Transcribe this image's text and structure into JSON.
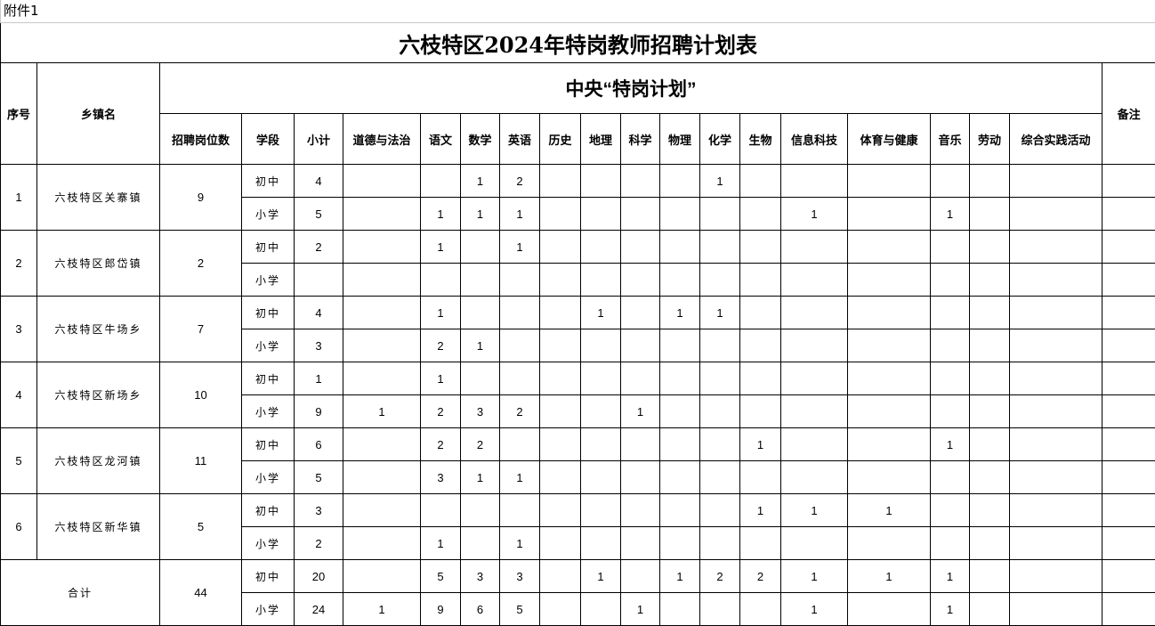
{
  "attachment_label": "附件1",
  "title": "六枝特区2024年特岗教师招聘计划表",
  "headers": {
    "index": "序号",
    "town": "乡镇名",
    "central": "中央“特岗计划”",
    "remarks": "备注",
    "positions": "招聘岗位数",
    "stage": "学段",
    "subtotal": "小计",
    "subjects": [
      "道德与法治",
      "语文",
      "数学",
      "英语",
      "历史",
      "地理",
      "科学",
      "物理",
      "化学",
      "生物",
      "信息科技",
      "体育与健康",
      "音乐",
      "劳动",
      "综合实践活动"
    ]
  },
  "rows": [
    {
      "index": "1",
      "town": "六枝特区关寨镇",
      "positions": "9",
      "stages": [
        {
          "stage": "初中",
          "subtotal": "4",
          "values": [
            "",
            "",
            "1",
            "2",
            "",
            "",
            "",
            "",
            "1",
            "",
            "",
            "",
            "",
            "",
            ""
          ],
          "remark": ""
        },
        {
          "stage": "小学",
          "subtotal": "5",
          "values": [
            "",
            "1",
            "1",
            "1",
            "",
            "",
            "",
            "",
            "",
            "",
            "1",
            "",
            "1",
            "",
            ""
          ],
          "remark": ""
        }
      ]
    },
    {
      "index": "2",
      "town": "六枝特区郎岱镇",
      "positions": "2",
      "stages": [
        {
          "stage": "初中",
          "subtotal": "2",
          "values": [
            "",
            "1",
            "",
            "1",
            "",
            "",
            "",
            "",
            "",
            "",
            "",
            "",
            "",
            "",
            ""
          ],
          "remark": ""
        },
        {
          "stage": "小学",
          "subtotal": "",
          "values": [
            "",
            "",
            "",
            "",
            "",
            "",
            "",
            "",
            "",
            "",
            "",
            "",
            "",
            "",
            ""
          ],
          "remark": ""
        }
      ]
    },
    {
      "index": "3",
      "town": "六枝特区牛场乡",
      "positions": "7",
      "stages": [
        {
          "stage": "初中",
          "subtotal": "4",
          "values": [
            "",
            "1",
            "",
            "",
            "",
            "1",
            "",
            "1",
            "1",
            "",
            "",
            "",
            "",
            "",
            ""
          ],
          "remark": ""
        },
        {
          "stage": "小学",
          "subtotal": "3",
          "values": [
            "",
            "2",
            "1",
            "",
            "",
            "",
            "",
            "",
            "",
            "",
            "",
            "",
            "",
            "",
            ""
          ],
          "remark": ""
        }
      ]
    },
    {
      "index": "4",
      "town": "六枝特区新场乡",
      "positions": "10",
      "stages": [
        {
          "stage": "初中",
          "subtotal": "1",
          "values": [
            "",
            "1",
            "",
            "",
            "",
            "",
            "",
            "",
            "",
            "",
            "",
            "",
            "",
            "",
            ""
          ],
          "remark": ""
        },
        {
          "stage": "小学",
          "subtotal": "9",
          "values": [
            "1",
            "2",
            "3",
            "2",
            "",
            "",
            "1",
            "",
            "",
            "",
            "",
            "",
            "",
            "",
            ""
          ],
          "remark": ""
        }
      ]
    },
    {
      "index": "5",
      "town": "六枝特区龙河镇",
      "positions": "11",
      "stages": [
        {
          "stage": "初中",
          "subtotal": "6",
          "values": [
            "",
            "2",
            "2",
            "",
            "",
            "",
            "",
            "",
            "",
            "1",
            "",
            "",
            "1",
            "",
            ""
          ],
          "remark": ""
        },
        {
          "stage": "小学",
          "subtotal": "5",
          "values": [
            "",
            "3",
            "1",
            "1",
            "",
            "",
            "",
            "",
            "",
            "",
            "",
            "",
            "",
            "",
            ""
          ],
          "remark": ""
        }
      ]
    },
    {
      "index": "6",
      "town": "六枝特区新华镇",
      "positions": "5",
      "stages": [
        {
          "stage": "初中",
          "subtotal": "3",
          "values": [
            "",
            "",
            "",
            "",
            "",
            "",
            "",
            "",
            "",
            "1",
            "1",
            "1",
            "",
            "",
            ""
          ],
          "remark": ""
        },
        {
          "stage": "小学",
          "subtotal": "2",
          "values": [
            "",
            "1",
            "",
            "1",
            "",
            "",
            "",
            "",
            "",
            "",
            "",
            "",
            "",
            "",
            ""
          ],
          "remark": ""
        }
      ]
    }
  ],
  "total": {
    "label": "合计",
    "positions": "44",
    "stages": [
      {
        "stage": "初中",
        "subtotal": "20",
        "values": [
          "",
          "5",
          "3",
          "3",
          "",
          "1",
          "",
          "1",
          "2",
          "2",
          "1",
          "1",
          "1",
          "",
          ""
        ],
        "remark": ""
      },
      {
        "stage": "小学",
        "subtotal": "24",
        "values": [
          "1",
          "9",
          "6",
          "5",
          "",
          "",
          "1",
          "",
          "",
          "",
          "1",
          "",
          "1",
          "",
          ""
        ],
        "remark": ""
      }
    ]
  }
}
